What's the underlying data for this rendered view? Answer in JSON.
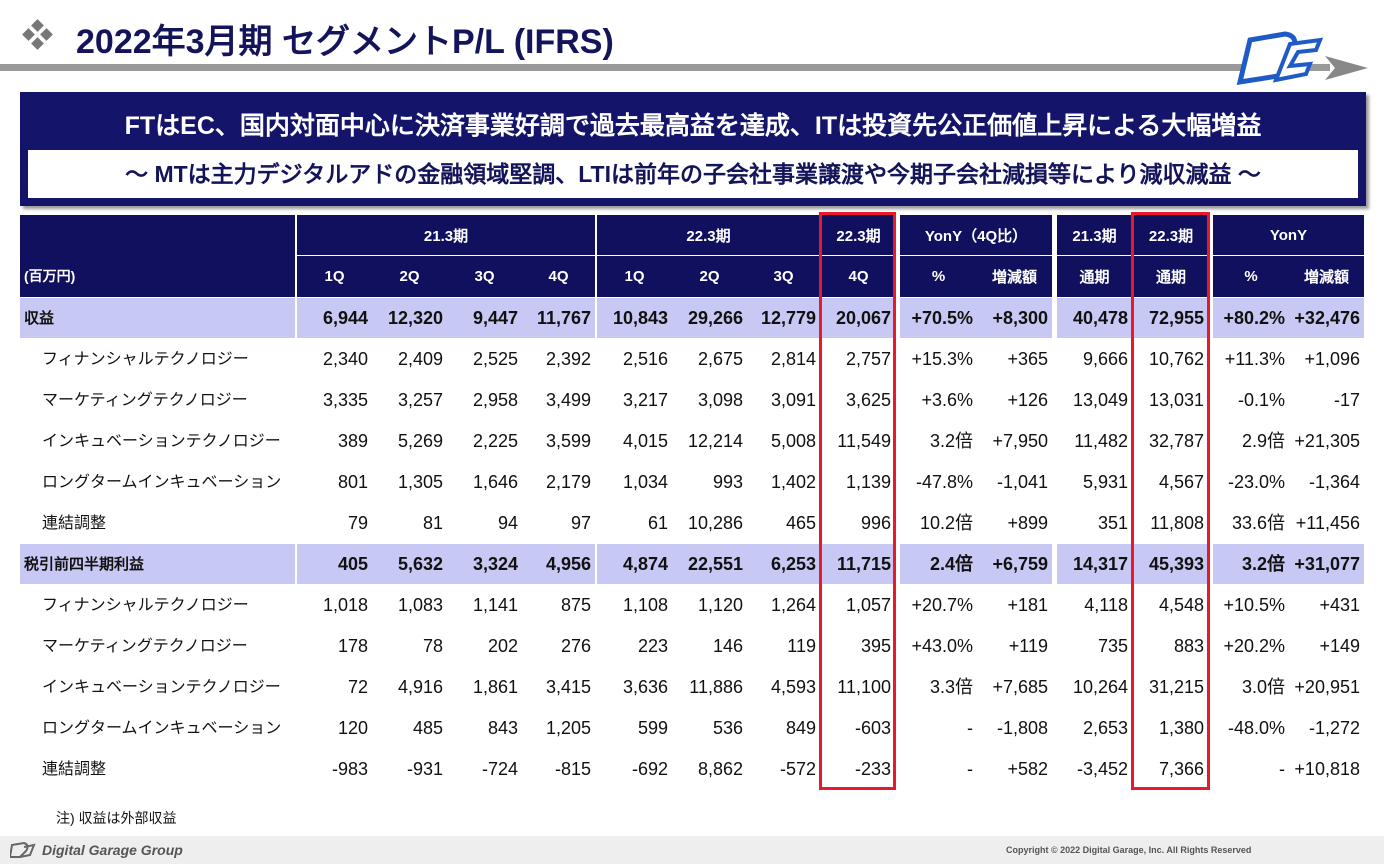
{
  "header": {
    "title": "2022年3月期 セグメントP/L (IFRS)",
    "headline": "FTはEC、国内対面中心に決済事業好調で過去最高益を達成、ITは投資先公正価値上昇による大幅増益",
    "subheadline": "～ MTは主力デジタルアドの金融領域堅調、LTIは前年の子会社事業譲渡や今期子会社減損等により減収減益 ～"
  },
  "table": {
    "unit": "(百万円)",
    "groups": [
      "21.3期",
      "22.3期",
      "22.3期",
      "YonY（4Q比）",
      "21.3期",
      "22.3期",
      "YonY"
    ],
    "columns": [
      "1Q",
      "2Q",
      "3Q",
      "4Q",
      "1Q",
      "2Q",
      "3Q",
      "4Q",
      "%",
      "増減額",
      "通期",
      "通期",
      "%",
      "増減額"
    ],
    "rows": [
      {
        "label": "収益",
        "cells": [
          "6,944",
          "12,320",
          "9,447",
          "11,767",
          "10,843",
          "29,266",
          "12,779",
          "20,067",
          "+70.5%",
          "+8,300",
          "40,478",
          "72,955",
          "+80.2%",
          "+32,476"
        ]
      },
      {
        "label": "フィナンシャルテクノロジー",
        "cells": [
          "2,340",
          "2,409",
          "2,525",
          "2,392",
          "2,516",
          "2,675",
          "2,814",
          "2,757",
          "+15.3%",
          "+365",
          "9,666",
          "10,762",
          "+11.3%",
          "+1,096"
        ]
      },
      {
        "label": "マーケティングテクノロジー",
        "cells": [
          "3,335",
          "3,257",
          "2,958",
          "3,499",
          "3,217",
          "3,098",
          "3,091",
          "3,625",
          "+3.6%",
          "+126",
          "13,049",
          "13,031",
          "-0.1%",
          "-17"
        ]
      },
      {
        "label": "インキュベーションテクノロジー",
        "cells": [
          "389",
          "5,269",
          "2,225",
          "3,599",
          "4,015",
          "12,214",
          "5,008",
          "11,549",
          "3.2倍",
          "+7,950",
          "11,482",
          "32,787",
          "2.9倍",
          "+21,305"
        ]
      },
      {
        "label": "ロングタームインキュベーション",
        "cells": [
          "801",
          "1,305",
          "1,646",
          "2,179",
          "1,034",
          "993",
          "1,402",
          "1,139",
          "-47.8%",
          "-1,041",
          "5,931",
          "4,567",
          "-23.0%",
          "-1,364"
        ]
      },
      {
        "label": "連結調整",
        "cells": [
          "79",
          "81",
          "94",
          "97",
          "61",
          "10,286",
          "465",
          "996",
          "10.2倍",
          "+899",
          "351",
          "11,808",
          "33.6倍",
          "+11,456"
        ]
      },
      {
        "label": "税引前四半期利益",
        "cells": [
          "405",
          "5,632",
          "3,324",
          "4,956",
          "4,874",
          "22,551",
          "6,253",
          "11,715",
          "2.4倍",
          "+6,759",
          "14,317",
          "45,393",
          "3.2倍",
          "+31,077"
        ]
      },
      {
        "label": "フィナンシャルテクノロジー",
        "cells": [
          "1,018",
          "1,083",
          "1,141",
          "875",
          "1,108",
          "1,120",
          "1,264",
          "1,057",
          "+20.7%",
          "+181",
          "4,118",
          "4,548",
          "+10.5%",
          "+431"
        ]
      },
      {
        "label": "マーケティングテクノロジー",
        "cells": [
          "178",
          "78",
          "202",
          "276",
          "223",
          "146",
          "119",
          "395",
          "+43.0%",
          "+119",
          "735",
          "883",
          "+20.2%",
          "+149"
        ]
      },
      {
        "label": "インキュベーションテクノロジー",
        "cells": [
          "72",
          "4,916",
          "1,861",
          "3,415",
          "3,636",
          "11,886",
          "4,593",
          "11,100",
          "3.3倍",
          "+7,685",
          "10,264",
          "31,215",
          "3.0倍",
          "+20,951"
        ]
      },
      {
        "label": "ロングタームインキュベーション",
        "cells": [
          "120",
          "485",
          "843",
          "1,205",
          "599",
          "536",
          "849",
          "-603",
          "-",
          "-1,808",
          "2,653",
          "1,380",
          "-48.0%",
          "-1,272"
        ]
      },
      {
        "label": "連結調整",
        "cells": [
          "-983",
          "-931",
          "-724",
          "-815",
          "-692",
          "8,862",
          "-572",
          "-233",
          "-",
          "+582",
          "-3,452",
          "7,366",
          "-",
          "+10,818"
        ]
      }
    ]
  },
  "note": "注) 収益は外部収益",
  "footer": {
    "brand": "Digital Garage Group",
    "copyright": "Copyright © 2022 Digital Garage, Inc. All Rights Reserved"
  }
}
